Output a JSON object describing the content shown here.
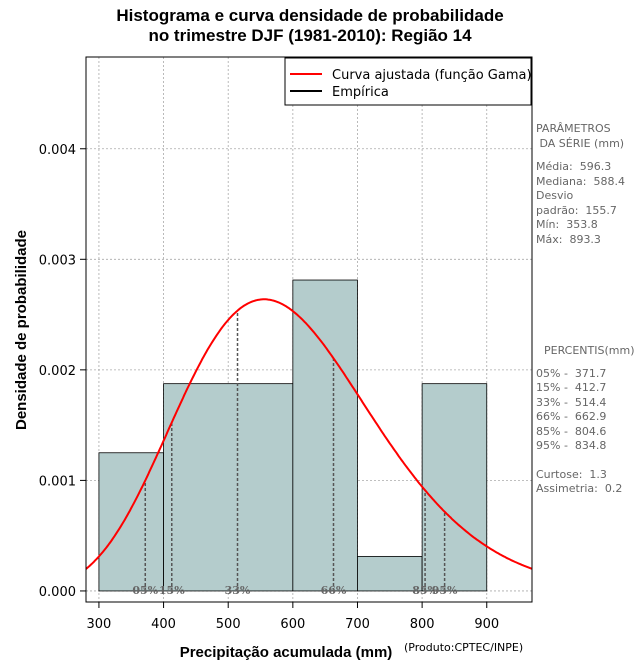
{
  "title": {
    "line1": "Histograma e curva densidade de probabilidade",
    "line2": "no trimestre DJF (1981-2010): Região 14"
  },
  "credit": "(Produto:CPTEC/INPE)",
  "side_panel": {
    "params_title_1": "PARÂMETROS",
    "params_title_2": " DA SÉRIE (mm)",
    "params": [
      "Média:  596.3",
      "Mediana:  588.4",
      "Desvio",
      "padrão:  155.7",
      "Mín:  353.8",
      "Máx:  893.3"
    ],
    "pct_title": "PERCENTIS(mm)",
    "percentiles": [
      "05% -  371.7",
      "15% -  412.7",
      "33% -  514.4",
      "66% -  662.9",
      "85% -  804.6",
      "95% -  834.8"
    ],
    "stats": [
      "Curtose:  1.3",
      "Assimetria:  0.2"
    ]
  },
  "colors": {
    "bar_fill": "#b4cccc",
    "curve": "#ff0000",
    "grid": "#aaaaaa",
    "percentile_line": "#555555",
    "percentile_label": "#666666"
  },
  "chart_data": {
    "type": "bar",
    "title": "Histograma e curva densidade de probabilidade no trimestre DJF (1981-2010): Região 14",
    "xlabel": "Precipitação acumulada (mm)",
    "ylabel": "Densidade de probabilidade",
    "xlim": [
      280,
      970
    ],
    "ylim": [
      -0.0001,
      0.00483
    ],
    "xticks": [
      300,
      400,
      500,
      600,
      700,
      800,
      900
    ],
    "yticks": [
      0.0,
      0.001,
      0.002,
      0.003,
      0.004
    ],
    "ytick_labels": [
      "0.000",
      "0.001",
      "0.002",
      "0.003",
      "0.004"
    ],
    "grid": true,
    "bins": [
      {
        "start": 300,
        "end": 400,
        "density": 0.00125
      },
      {
        "start": 400,
        "end": 600,
        "density": 0.001875
      },
      {
        "start": 600,
        "end": 700,
        "density": 0.0028125
      },
      {
        "start": 700,
        "end": 800,
        "density": 0.0003125
      },
      {
        "start": 800,
        "end": 900,
        "density": 0.001875
      }
    ],
    "gamma_fit": {
      "mean": 596.3,
      "sd": 155.7
    },
    "percentiles": [
      {
        "label": "05%",
        "value": 371.7
      },
      {
        "label": "15%",
        "value": 412.7
      },
      {
        "label": "33%",
        "value": 514.4
      },
      {
        "label": "66%",
        "value": 662.9
      },
      {
        "label": "85%",
        "value": 804.6
      },
      {
        "label": "95%",
        "value": 834.8
      }
    ],
    "legend": {
      "position": "top-right",
      "entries": [
        "Curva ajustada (função Gama)",
        "Empírica"
      ]
    }
  }
}
